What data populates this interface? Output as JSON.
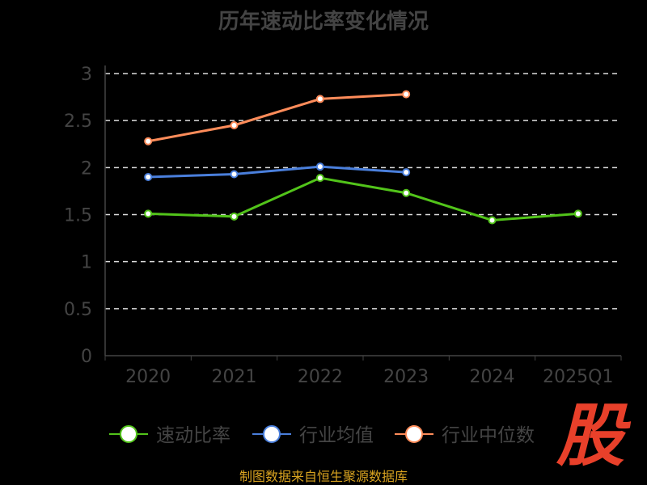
{
  "chart_data": {
    "type": "line",
    "title": "历年速动比率变化情况",
    "categories": [
      "2020",
      "2021",
      "2022",
      "2023",
      "2024",
      "2025Q1"
    ],
    "ylim": [
      0,
      3
    ],
    "yticks": [
      "0",
      "0.5",
      "1",
      "1.5",
      "2",
      "2.5",
      "3"
    ],
    "grid": true,
    "legend_position": "bottom",
    "series": [
      {
        "name": "速动比率",
        "color": "#52c41a",
        "values": [
          1.51,
          1.48,
          1.89,
          1.73,
          1.44,
          1.51
        ]
      },
      {
        "name": "行业均值",
        "color": "#4a7fdc",
        "values": [
          1.9,
          1.93,
          2.01,
          1.95,
          null,
          null
        ]
      },
      {
        "name": "行业中位数",
        "color": "#ff8c5a",
        "values": [
          2.28,
          2.45,
          2.73,
          2.78,
          null,
          null
        ]
      }
    ]
  },
  "source": "制图数据来自恒生聚源数据库",
  "logo_text": "股"
}
